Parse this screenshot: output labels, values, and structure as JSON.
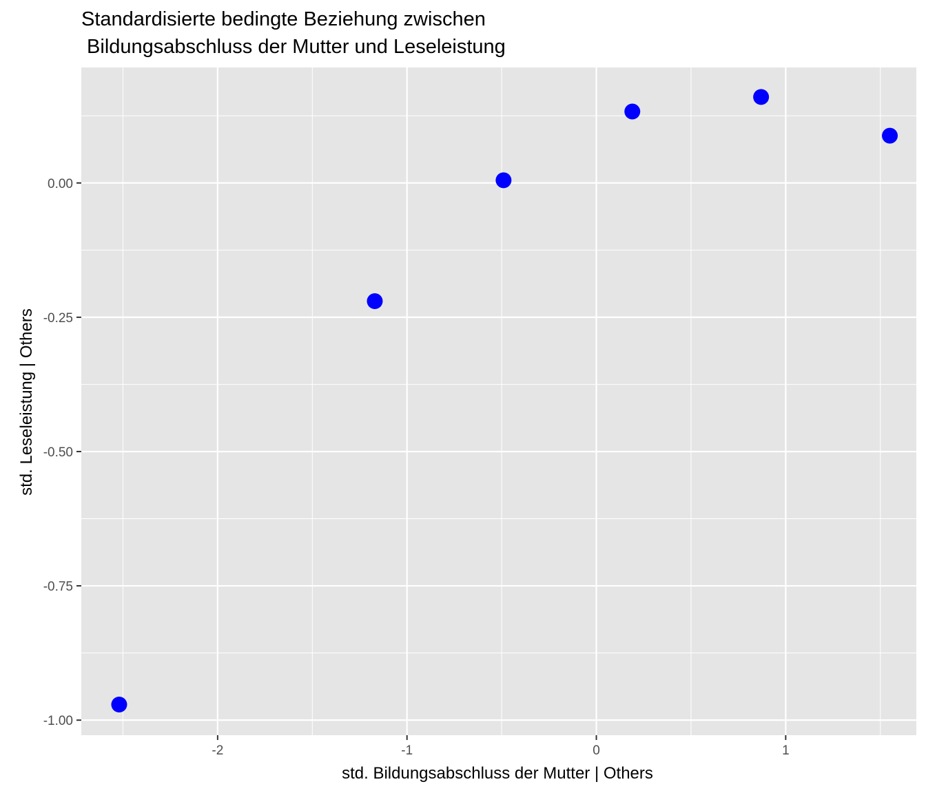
{
  "chart_data": {
    "type": "scatter",
    "title_lines": [
      "Standardisierte bedingte Beziehung zwischen",
      " Bildungsabschluss der Mutter und Leseleistung"
    ],
    "xlabel": "std. Bildungsabschluss der Mutter | Others",
    "ylabel": "std. Leseleistung | Others",
    "xlim": [
      -2.72,
      1.69
    ],
    "ylim": [
      -1.028,
      0.215
    ],
    "x_ticks": [
      {
        "value": -2,
        "label": "-2"
      },
      {
        "value": -1,
        "label": "-1"
      },
      {
        "value": 0,
        "label": "0"
      },
      {
        "value": 1,
        "label": "1"
      }
    ],
    "x_minor_ticks": [
      -2.5,
      -1.5,
      -0.5,
      0.5,
      1.5
    ],
    "y_ticks": [
      {
        "value": 0,
        "label": "0.00"
      },
      {
        "value": -0.25,
        "label": "-0.25"
      },
      {
        "value": -0.5,
        "label": "-0.50"
      },
      {
        "value": -0.75,
        "label": "-0.75"
      },
      {
        "value": -1,
        "label": "-1.00"
      }
    ],
    "y_minor_ticks": [
      0.125,
      -0.125,
      -0.375,
      -0.625,
      -0.875
    ],
    "points": [
      {
        "x": -2.52,
        "y": -0.971
      },
      {
        "x": -1.17,
        "y": -0.22
      },
      {
        "x": -0.49,
        "y": 0.005
      },
      {
        "x": 0.19,
        "y": 0.133
      },
      {
        "x": 0.87,
        "y": 0.16
      },
      {
        "x": 1.55,
        "y": 0.088
      }
    ],
    "point_color": "#0000ff",
    "panel_background": "#e5e5e5",
    "grid_color": "#ffffff",
    "grid": true
  }
}
